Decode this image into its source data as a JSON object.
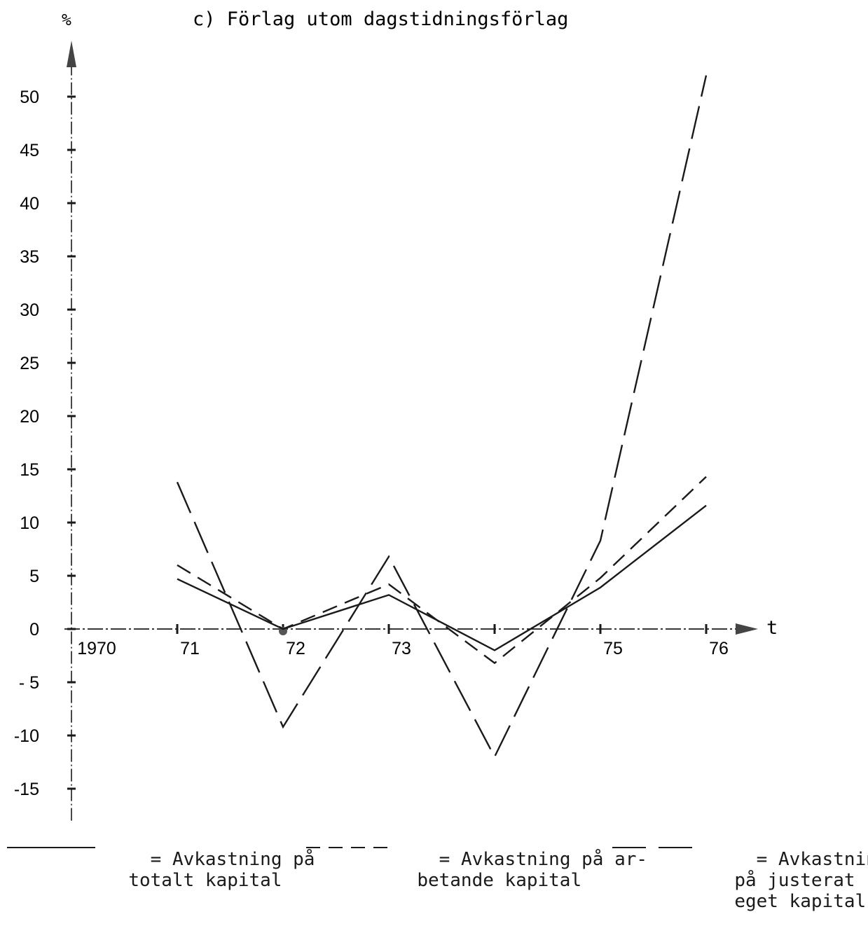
{
  "chart_data": {
    "type": "line",
    "title": "c) Förlag utom dagstidningsförlag",
    "ylabel": "%",
    "xlabel": "t",
    "x": [
      1970,
      1971,
      1972,
      1973,
      1974,
      1975,
      1976
    ],
    "x_tick_labels": [
      "1970",
      "71",
      "72",
      "73",
      "",
      "75",
      "76"
    ],
    "y_ticks": [
      50,
      45,
      40,
      35,
      30,
      25,
      20,
      15,
      10,
      5,
      0,
      -5,
      -10,
      -15
    ],
    "y_tick_labels": [
      "50",
      "45",
      "40",
      "35",
      "30",
      "25",
      "20",
      "15",
      "10",
      "5",
      "0",
      "- 5",
      "-10",
      "-15"
    ],
    "ylim": [
      -18,
      56
    ],
    "grid": false,
    "legend_position": "bottom",
    "series": [
      {
        "name": "Avkastning på totalt kapital",
        "line_style": "solid",
        "x": [
          1971,
          1972,
          1973,
          1974,
          1975,
          1976
        ],
        "values": [
          4.7,
          0,
          3.2,
          -2,
          3.9,
          11.6
        ]
      },
      {
        "name": "Avkastning på arbetande kapital",
        "line_style": "short-dash",
        "x": [
          1971,
          1972,
          1973,
          1974,
          1975,
          1976
        ],
        "values": [
          6,
          0,
          4.2,
          -3.2,
          4.8,
          14.3
        ]
      },
      {
        "name": "Avkastning på justerat eget kapital",
        "line_style": "long-dash",
        "x": [
          1971,
          1972,
          1973,
          1974,
          1975,
          1976
        ],
        "values": [
          13.8,
          -9.2,
          6.8,
          -12,
          8.3,
          52
        ]
      }
    ]
  },
  "legend": [
    {
      "eq": "=",
      "line1": "Avkastning på",
      "line2": "totalt kapital",
      "line3": ""
    },
    {
      "eq": "=",
      "line1": "Avkastning på ar-",
      "line2": "betande kapital",
      "line3": ""
    },
    {
      "eq": "=",
      "line1": "Avkastning",
      "line2": "på justerat",
      "line3": "eget kapital"
    }
  ]
}
